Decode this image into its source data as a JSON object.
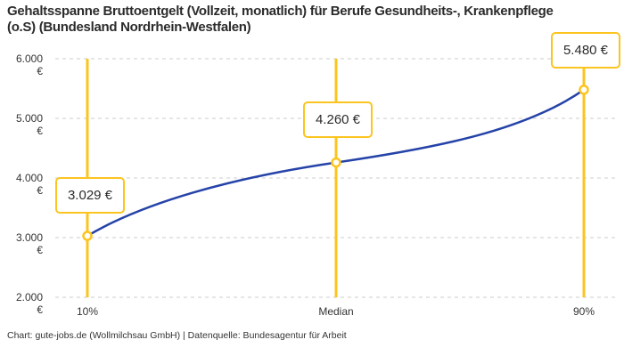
{
  "title": "Gehaltsspanne Bruttoentgelt (Vollzeit, monatlich) für Berufe Gesundheits-, Krankenpflege (o.S) (Bundesland Nordrhein-Westfalen)",
  "footer": "Chart: gute-jobs.de (Wollmilchsau GmbH) | Datenquelle: Bundesagentur für Arbeit",
  "chart_data": {
    "type": "line",
    "title": "Gehaltsspanne Bruttoentgelt (Vollzeit, monatlich) für Berufe Gesundheits-, Krankenpflege (o.S) (Bundesland Nordrhein-Westfalen)",
    "categories": [
      "10%",
      "Median",
      "90%"
    ],
    "values": [
      3029,
      4260,
      5480
    ],
    "value_labels": [
      "3.029 €",
      "4.260 €",
      "5.480 €"
    ],
    "ylim": [
      2000,
      6000
    ],
    "ytick_values": [
      6000,
      5000,
      4000,
      3000,
      2000
    ],
    "ytick_labels": [
      "6.000 €",
      "5.000 €",
      "4.000 €",
      "3.000 €",
      "2.000 €"
    ],
    "xlabel": "",
    "ylabel": "",
    "grid": "horizontal-dashed",
    "legend": "none",
    "colors": {
      "line": "#2543a8",
      "marker_stroke": "#fcc41f",
      "marker_fill": "#ffffff",
      "grid": "#cccccc",
      "text": "#2b2b2b"
    }
  }
}
